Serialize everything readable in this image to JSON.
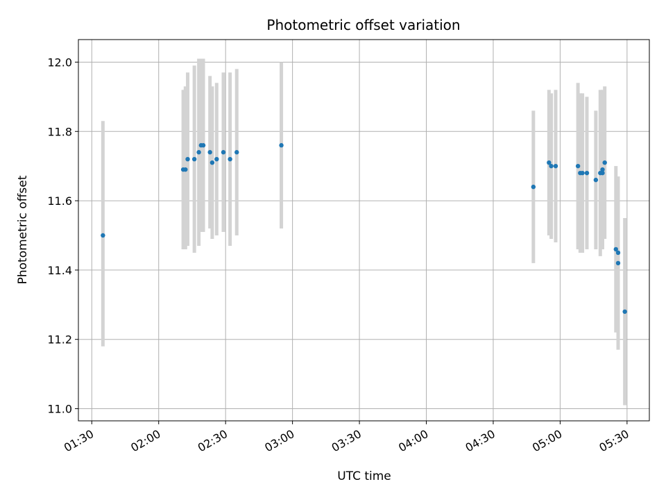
{
  "chart_data": {
    "type": "scatter",
    "title": "Photometric offset variation",
    "xlabel": "UTC time",
    "ylabel": "Photometric offset",
    "x_tick_labels": [
      "01:30",
      "02:00",
      "02:30",
      "03:00",
      "03:30",
      "04:00",
      "04:30",
      "05:00",
      "05:30"
    ],
    "y_tick_labels": [
      "11.0",
      "11.2",
      "11.4",
      "11.6",
      "11.8",
      "12.0"
    ],
    "xlim": [
      "01:24",
      "05:40"
    ],
    "ylim": [
      10.965,
      12.065
    ],
    "grid": true,
    "marker_color": "#1f77b4",
    "errorbar_color": "#d3d3d3",
    "points": [
      {
        "x": "01:35",
        "y": 11.5,
        "err_low": 0.32,
        "err_high": 0.33
      },
      {
        "x": "02:11",
        "y": 11.69,
        "err_low": 0.23,
        "err_high": 0.23
      },
      {
        "x": "02:12",
        "y": 11.69,
        "err_low": 0.23,
        "err_high": 0.24
      },
      {
        "x": "02:13",
        "y": 11.72,
        "err_low": 0.25,
        "err_high": 0.25
      },
      {
        "x": "02:16",
        "y": 11.72,
        "err_low": 0.27,
        "err_high": 0.27
      },
      {
        "x": "02:18",
        "y": 11.74,
        "err_low": 0.27,
        "err_high": 0.27
      },
      {
        "x": "02:19",
        "y": 11.76,
        "err_low": 0.25,
        "err_high": 0.25
      },
      {
        "x": "02:20",
        "y": 11.76,
        "err_low": 0.25,
        "err_high": 0.25
      },
      {
        "x": "02:23",
        "y": 11.74,
        "err_low": 0.22,
        "err_high": 0.22
      },
      {
        "x": "02:24",
        "y": 11.71,
        "err_low": 0.22,
        "err_high": 0.22
      },
      {
        "x": "02:26",
        "y": 11.72,
        "err_low": 0.22,
        "err_high": 0.22
      },
      {
        "x": "02:29",
        "y": 11.74,
        "err_low": 0.23,
        "err_high": 0.23
      },
      {
        "x": "02:32",
        "y": 11.72,
        "err_low": 0.25,
        "err_high": 0.25
      },
      {
        "x": "02:35",
        "y": 11.74,
        "err_low": 0.24,
        "err_high": 0.24
      },
      {
        "x": "02:55",
        "y": 11.76,
        "err_low": 0.24,
        "err_high": 0.24
      },
      {
        "x": "04:48",
        "y": 11.64,
        "err_low": 0.22,
        "err_high": 0.22
      },
      {
        "x": "04:55",
        "y": 11.71,
        "err_low": 0.21,
        "err_high": 0.21
      },
      {
        "x": "04:56",
        "y": 11.7,
        "err_low": 0.21,
        "err_high": 0.21
      },
      {
        "x": "04:58",
        "y": 11.7,
        "err_low": 0.22,
        "err_high": 0.22
      },
      {
        "x": "05:08",
        "y": 11.7,
        "err_low": 0.24,
        "err_high": 0.24
      },
      {
        "x": "05:09",
        "y": 11.68,
        "err_low": 0.23,
        "err_high": 0.23
      },
      {
        "x": "05:10",
        "y": 11.68,
        "err_low": 0.23,
        "err_high": 0.23
      },
      {
        "x": "05:12",
        "y": 11.68,
        "err_low": 0.22,
        "err_high": 0.22
      },
      {
        "x": "05:16",
        "y": 11.66,
        "err_low": 0.2,
        "err_high": 0.2
      },
      {
        "x": "05:18",
        "y": 11.68,
        "err_low": 0.24,
        "err_high": 0.24
      },
      {
        "x": "05:19",
        "y": 11.69,
        "err_low": 0.23,
        "err_high": 0.23
      },
      {
        "x": "05:19",
        "y": 11.68,
        "err_low": 0.21,
        "err_high": 0.21
      },
      {
        "x": "05:20",
        "y": 11.71,
        "err_low": 0.22,
        "err_high": 0.22
      },
      {
        "x": "05:25",
        "y": 11.46,
        "err_low": 0.24,
        "err_high": 0.24
      },
      {
        "x": "05:26",
        "y": 11.45,
        "err_low": 0.21,
        "err_high": 0.21
      },
      {
        "x": "05:26",
        "y": 11.42,
        "err_low": 0.25,
        "err_high": 0.25
      },
      {
        "x": "05:29",
        "y": 11.28,
        "err_low": 0.27,
        "err_high": 0.27
      }
    ]
  }
}
